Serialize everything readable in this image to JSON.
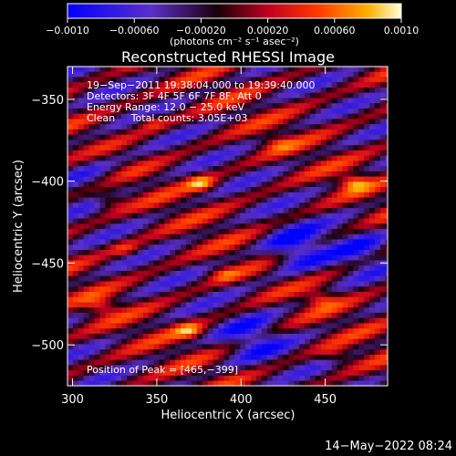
{
  "chart_data": {
    "type": "heatmap",
    "title": "Reconstructed RHESSI Image",
    "xlabel": "Heliocentric X (arcsec)",
    "ylabel": "Heliocentric Y (arcsec)",
    "xlim": [
      297,
      487
    ],
    "ylim": [
      -525,
      -330
    ],
    "x_ticks": [
      300,
      350,
      400,
      450
    ],
    "y_ticks": [
      -350,
      -400,
      -450,
      -500
    ],
    "colorbar": {
      "range": [
        -0.001,
        0.001
      ],
      "ticks": [
        -0.001,
        -0.0006,
        -0.0002,
        0.0002,
        0.0006,
        0.001
      ],
      "tick_labels": [
        "−0.0010",
        "−0.00060",
        "−0.00020",
        "0.00020",
        "0.00060",
        "0.0010"
      ],
      "units": "(photons cm⁻² s⁻¹ asec⁻²)"
    },
    "colors": [
      "#0000ff",
      "#5a2fc8",
      "#1a0008",
      "#c00020",
      "#ff3800",
      "#ffb000",
      "#ffffd8"
    ],
    "annotations": [
      "19−Sep−2011 19:38:04.000 to 19:39:40.000",
      "Detectors: 3F 4F 5F 6F 7F 8F, Att 0",
      "Energy Range: 12.0 − 25.0 keV",
      "Clean     Total counts: 3.05E+03"
    ],
    "peak_label": "Position of Peak = [465,−399]",
    "peak": [
      465,
      -399
    ],
    "hot_spots": [
      {
        "x": 375,
        "y": -400,
        "v": 0.00095
      },
      {
        "x": 465,
        "y": -399,
        "v": 0.001
      },
      {
        "x": 320,
        "y": -410,
        "v": 0.0007
      },
      {
        "x": 345,
        "y": -362,
        "v": 0.0007
      },
      {
        "x": 315,
        "y": -475,
        "v": 0.00075
      },
      {
        "x": 368,
        "y": -490,
        "v": 0.00085
      },
      {
        "x": 445,
        "y": -470,
        "v": 0.00075
      },
      {
        "x": 388,
        "y": -455,
        "v": 0.0006
      },
      {
        "x": 330,
        "y": -440,
        "v": 0.0006
      },
      {
        "x": 420,
        "y": -375,
        "v": 0.00055
      },
      {
        "x": 455,
        "y": -505,
        "v": 0.0006
      }
    ],
    "cold_spots": [
      {
        "x": 430,
        "y": -440,
        "v": -0.0009
      },
      {
        "x": 405,
        "y": -495,
        "v": -0.0006
      },
      {
        "x": 310,
        "y": -395,
        "v": -0.00045
      },
      {
        "x": 470,
        "y": -440,
        "v": -0.0005
      }
    ]
  },
  "footer": {
    "timestamp": "14−May−2022 08:24"
  }
}
